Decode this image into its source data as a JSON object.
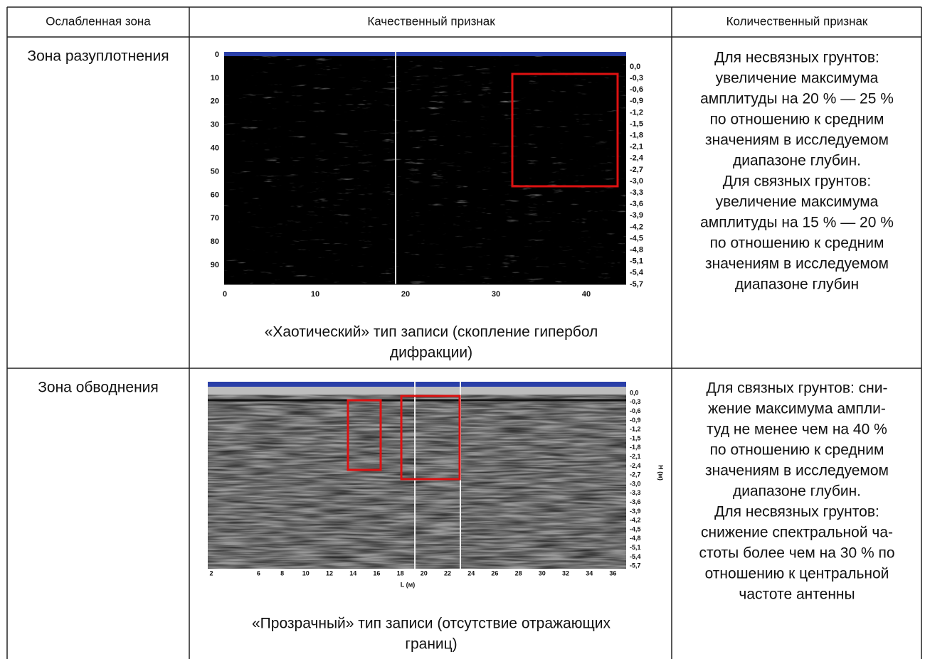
{
  "table": {
    "header": [
      "Ослабленная зона",
      "Качественный признак",
      "Количественный признак"
    ],
    "rows": [
      {
        "zone": "Зона разуплотнения",
        "figure": {
          "left_ticks": [
            0,
            10,
            20,
            30,
            40,
            50,
            60,
            70,
            80,
            90
          ],
          "bottom_ticks": [
            0,
            10,
            20,
            30,
            40
          ],
          "right_ticks": [
            "0,0",
            "-0,3",
            "-0,6",
            "-0,9",
            "-1,2",
            "-1,5",
            "-1,8",
            "-2,1",
            "-2,4",
            "-2,7",
            "-3,0",
            "-3,3",
            "-3,6",
            "-3,9",
            "-4,2",
            "-4,5",
            "-4,8",
            "-5,1",
            "-5,4",
            "-5,7"
          ]
        },
        "caption": [
          "«Хаотический» тип записи (скопление гипербол",
          "дифракции)"
        ],
        "criterion": [
          "Для несвязных грунтов:",
          "увеличение максимума",
          "амплитуды на 20 % — 25 %",
          "по отношению к средним",
          "значениям в исследуемом",
          "диапазоне глубин.",
          "Для связных грунтов:",
          "увеличение максимума",
          "амплитуды на 15 % — 20 %",
          "по отношению к средним",
          "значениям в исследуемом",
          "диапазоне глубин"
        ]
      },
      {
        "zone": "Зона обводнения",
        "figure": {
          "bottom_ticks": [
            2,
            6,
            8,
            10,
            12,
            14,
            16,
            18,
            20,
            22,
            24,
            26,
            28,
            30,
            32,
            34,
            36
          ],
          "x_label": "L (м)",
          "y_label": "H (м)",
          "right_ticks": [
            "0,0",
            "-0,3",
            "-0,6",
            "-0,9",
            "-1,2",
            "-1,5",
            "-1,8",
            "-2,1",
            "-2,4",
            "-2,7",
            "-3,0",
            "-3,3",
            "-3,6",
            "-3,9",
            "-4,2",
            "-4,5",
            "-4,8",
            "-5,1",
            "-5,4",
            "-5,7"
          ]
        },
        "caption": [
          "«Прозрачный» тип записи (отсутствие отражающих",
          "границ)"
        ],
        "criterion": [
          "Для связных грунтов: сни-",
          "жение максимума ампли-",
          "туд не менее чем на 40 %",
          "по отношению к средним",
          "значениям в исследуемом",
          "диапазоне глубин.",
          "Для несвязных грунтов:",
          "снижение спектральной ча-",
          "стоты более чем на 30 % по",
          "отношению к центральной",
          "частоте антенны"
        ]
      }
    ]
  }
}
